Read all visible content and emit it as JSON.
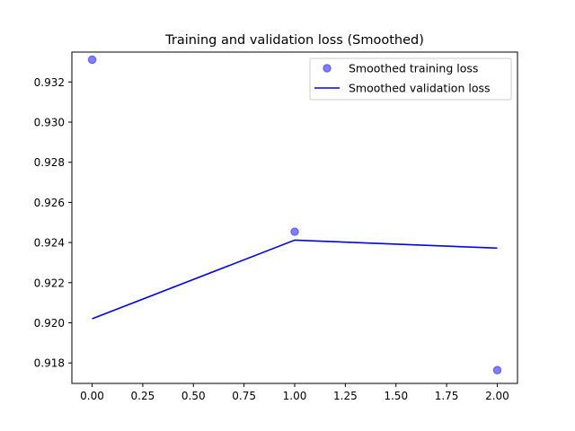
{
  "chart_data": {
    "type": "line",
    "title": "Training and validation loss (Smoothed)",
    "xlabel": "",
    "ylabel": "",
    "x": [
      0,
      1,
      2
    ],
    "xlim": [
      -0.1,
      2.1
    ],
    "ylim": [
      0.91698,
      0.93349
    ],
    "xticks": [
      "0.00",
      "0.25",
      "0.50",
      "0.75",
      "1.00",
      "1.25",
      "1.50",
      "1.75",
      "2.00"
    ],
    "yticks": [
      "0.918",
      "0.920",
      "0.922",
      "0.924",
      "0.926",
      "0.928",
      "0.930",
      "0.932"
    ],
    "grid": false,
    "legend_position": "top-right",
    "series": [
      {
        "name": "Smoothed training loss",
        "style": "markers",
        "color": "#0000ff",
        "values": [
          0.93311,
          0.92454,
          0.91764
        ]
      },
      {
        "name": "Smoothed validation loss",
        "style": "line",
        "color": "#0000ff",
        "values": [
          0.9202,
          0.92412,
          0.92372
        ]
      }
    ]
  }
}
